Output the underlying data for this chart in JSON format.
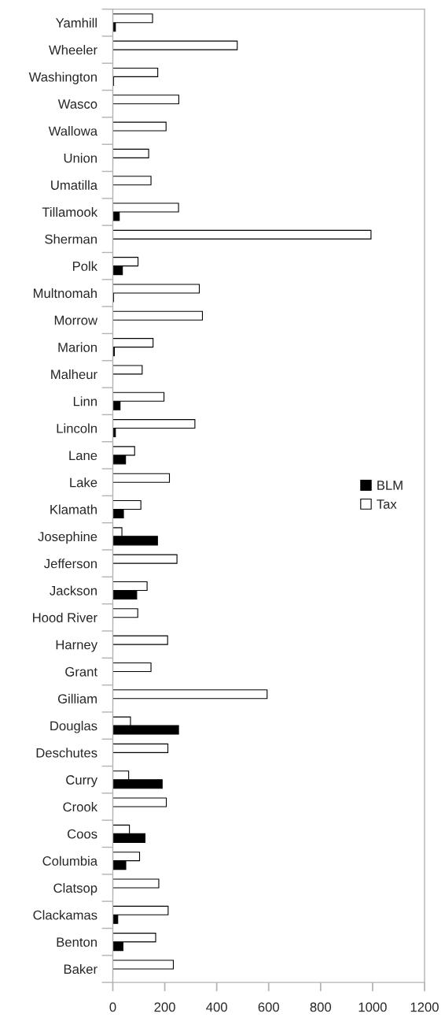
{
  "chart_data": {
    "type": "bar",
    "orientation": "horizontal",
    "categories": [
      "Yamhill",
      "Wheeler",
      "Washington",
      "Wasco",
      "Wallowa",
      "Union",
      "Umatilla",
      "Tillamook",
      "Sherman",
      "Polk",
      "Multnomah",
      "Morrow",
      "Marion",
      "Malheur",
      "Linn",
      "Lincoln",
      "Lane",
      "Lake",
      "Klamath",
      "Josephine",
      "Jefferson",
      "Jackson",
      "Hood River",
      "Harney",
      "Grant",
      "Gilliam",
      "Douglas",
      "Deschutes",
      "Curry",
      "Crook",
      "Coos",
      "Columbia",
      "Clatsop",
      "Clackamas",
      "Benton",
      "Baker"
    ],
    "series": [
      {
        "name": "BLM",
        "color": "#000000",
        "values": [
          10,
          0,
          3,
          0,
          0,
          0,
          0,
          25,
          0,
          37,
          3,
          0,
          6,
          0,
          28,
          10,
          49,
          0,
          41,
          172,
          0,
          92,
          0,
          0,
          0,
          0,
          253,
          0,
          190,
          0,
          124,
          50,
          0,
          19,
          39,
          0
        ]
      },
      {
        "name": "Tax",
        "color": "#ffffff",
        "values": [
          153,
          479,
          173,
          254,
          205,
          138,
          147,
          253,
          994,
          97,
          333,
          345,
          155,
          113,
          197,
          316,
          84,
          218,
          108,
          35,
          247,
          132,
          96,
          211,
          147,
          594,
          68,
          212,
          61,
          206,
          64,
          103,
          177,
          213,
          165,
          233
        ]
      }
    ],
    "xlim": [
      0,
      1200
    ],
    "xticks": [
      0,
      200,
      400,
      600,
      800,
      1000,
      1200
    ],
    "grid": false,
    "legend": "right"
  }
}
